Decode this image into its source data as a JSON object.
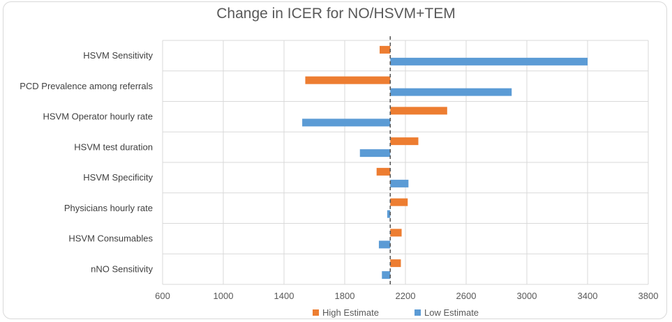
{
  "chart_data": {
    "type": "bar",
    "orientation": "horizontal",
    "chart_style": "tornado",
    "title": "Change in ICER for NO/HSVM+TEM",
    "baseline": 2100,
    "categories": [
      "HSVM Sensitivity",
      "PCD Prevalence among referrals",
      "HSVM Operator hourly rate",
      "HSVM test duration",
      "HSVM Specificity",
      "Physicians hourly rate",
      "HSVM Consumables",
      "nNO Sensitivity"
    ],
    "series": [
      {
        "name": "High Estimate",
        "color": "#ED7D31",
        "values": [
          2030,
          1540,
          2475,
          2285,
          2010,
          2215,
          2175,
          2170
        ]
      },
      {
        "name": "Low Estimate",
        "color": "#5B9BD5",
        "values": [
          3400,
          2900,
          1520,
          1900,
          2220,
          2080,
          2025,
          2045
        ]
      }
    ],
    "xlim": [
      600,
      3800
    ],
    "x_ticks": [
      600,
      1000,
      1400,
      1800,
      2200,
      2600,
      3000,
      3400,
      3800
    ],
    "grid": true,
    "legend_position": "bottom"
  }
}
